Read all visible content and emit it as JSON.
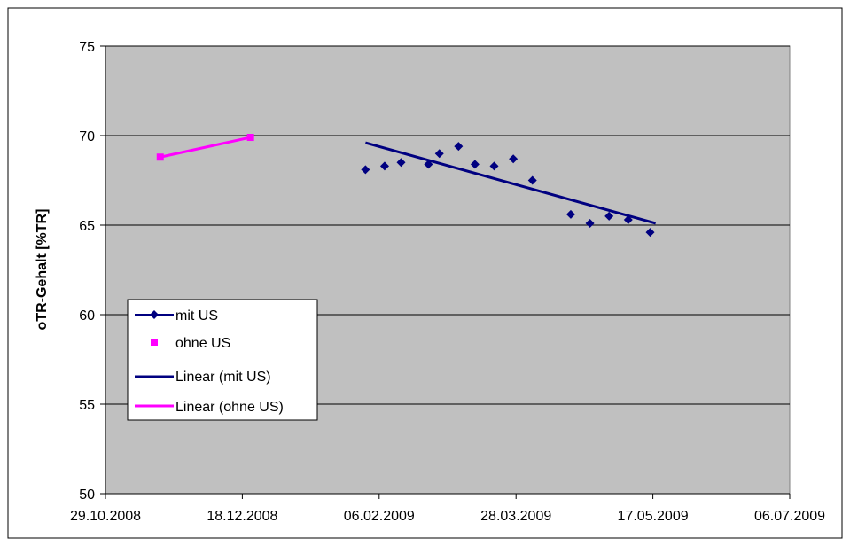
{
  "chart_data": {
    "type": "scatter",
    "title": "",
    "xlabel": "",
    "ylabel": "oTR-Gehalt [%TR]",
    "x_type": "date",
    "xlim": [
      "2008-10-29",
      "2009-07-06"
    ],
    "ylim": [
      50,
      75
    ],
    "x_ticks": [
      "29.10.2008",
      "18.12.2008",
      "06.02.2009",
      "28.03.2009",
      "17.05.2009",
      "06.07.2009"
    ],
    "y_ticks": [
      50,
      55,
      60,
      65,
      70,
      75
    ],
    "grid": {
      "horizontal": true,
      "vertical": false
    },
    "plot_background": "#c0c0c0",
    "legend_position": "left-middle",
    "series": [
      {
        "name": "mit US",
        "type": "scatter",
        "marker": "diamond",
        "color": "#000080",
        "points": [
          {
            "x": "2009-02-01",
            "y": 68.1
          },
          {
            "x": "2009-02-08",
            "y": 68.3
          },
          {
            "x": "2009-02-14",
            "y": 68.5
          },
          {
            "x": "2009-02-24",
            "y": 68.4
          },
          {
            "x": "2009-02-28",
            "y": 69.0
          },
          {
            "x": "2009-03-07",
            "y": 69.4
          },
          {
            "x": "2009-03-13",
            "y": 68.4
          },
          {
            "x": "2009-03-20",
            "y": 68.3
          },
          {
            "x": "2009-03-27",
            "y": 68.7
          },
          {
            "x": "2009-04-03",
            "y": 67.5
          },
          {
            "x": "2009-04-17",
            "y": 65.6
          },
          {
            "x": "2009-04-24",
            "y": 65.1
          },
          {
            "x": "2009-05-01",
            "y": 65.5
          },
          {
            "x": "2009-05-08",
            "y": 65.3
          },
          {
            "x": "2009-05-16",
            "y": 64.6
          }
        ]
      },
      {
        "name": "ohne US",
        "type": "scatter",
        "marker": "square",
        "color": "#ff00ff",
        "points": [
          {
            "x": "2008-11-18",
            "y": 68.8
          },
          {
            "x": "2008-12-21",
            "y": 69.9
          }
        ]
      },
      {
        "name": "Linear (mit US)",
        "type": "trendline",
        "color": "#000080",
        "points": [
          {
            "x": "2009-02-01",
            "y": 69.6
          },
          {
            "x": "2009-05-18",
            "y": 65.1
          }
        ]
      },
      {
        "name": "Linear (ohne US)",
        "type": "trendline",
        "color": "#ff00ff",
        "points": [
          {
            "x": "2008-11-18",
            "y": 68.8
          },
          {
            "x": "2008-12-21",
            "y": 69.9
          }
        ]
      }
    ]
  }
}
